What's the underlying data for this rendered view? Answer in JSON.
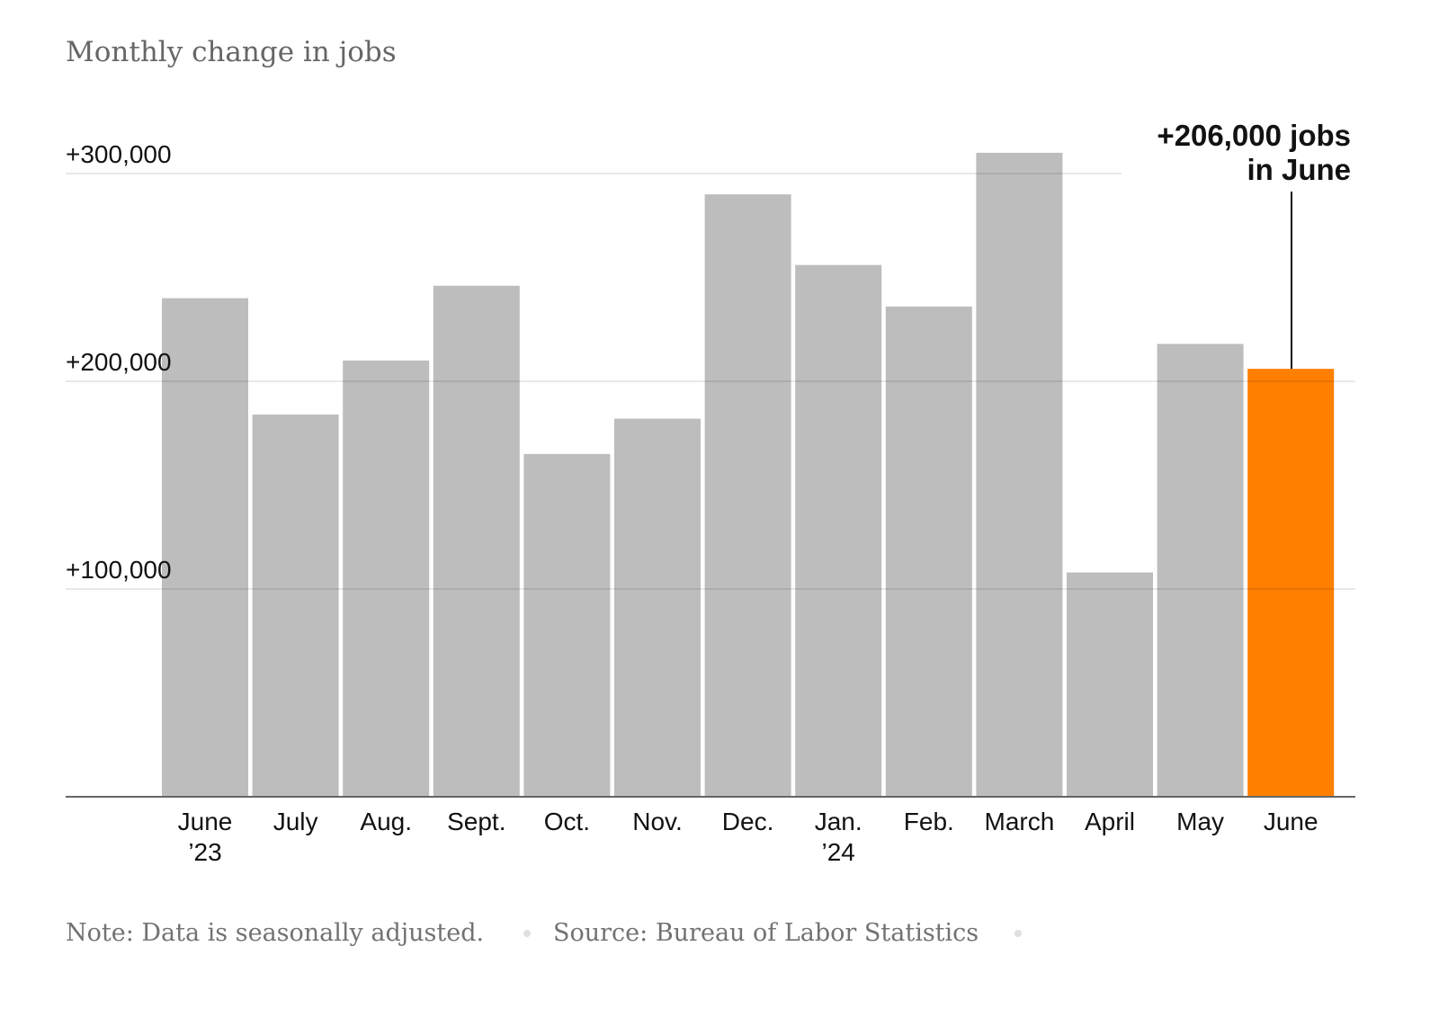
{
  "chart_data": {
    "type": "bar",
    "title": "Monthly change in jobs",
    "categories": [
      "June\n’23",
      "July",
      "Aug.",
      "Sept.",
      "Oct.",
      "Nov.",
      "Dec.",
      "Jan.\n’24",
      "Feb.",
      "March",
      "April",
      "May",
      "June"
    ],
    "values": [
      240000,
      184000,
      210000,
      246000,
      165000,
      182000,
      290000,
      256000,
      236000,
      310000,
      108000,
      218000,
      206000
    ],
    "ylim": [
      0,
      310000
    ],
    "yticks": [
      100000,
      200000,
      300000
    ],
    "ytick_labels": [
      "+100,000",
      "+200,000",
      "+300,000"
    ],
    "grid": true,
    "highlight_index": 12,
    "colors": {
      "bar": "#bdbdbd",
      "highlight": "#ff7f00",
      "grid": "#e0e0e0",
      "axis": "#666666",
      "text": "#121212",
      "muted": "#727272"
    },
    "annotation": {
      "lines": [
        "+206,000 jobs",
        "in June"
      ]
    },
    "note": "Note: Data is seasonally adjusted.",
    "source": "Source: Bureau of Labor Statistics"
  }
}
